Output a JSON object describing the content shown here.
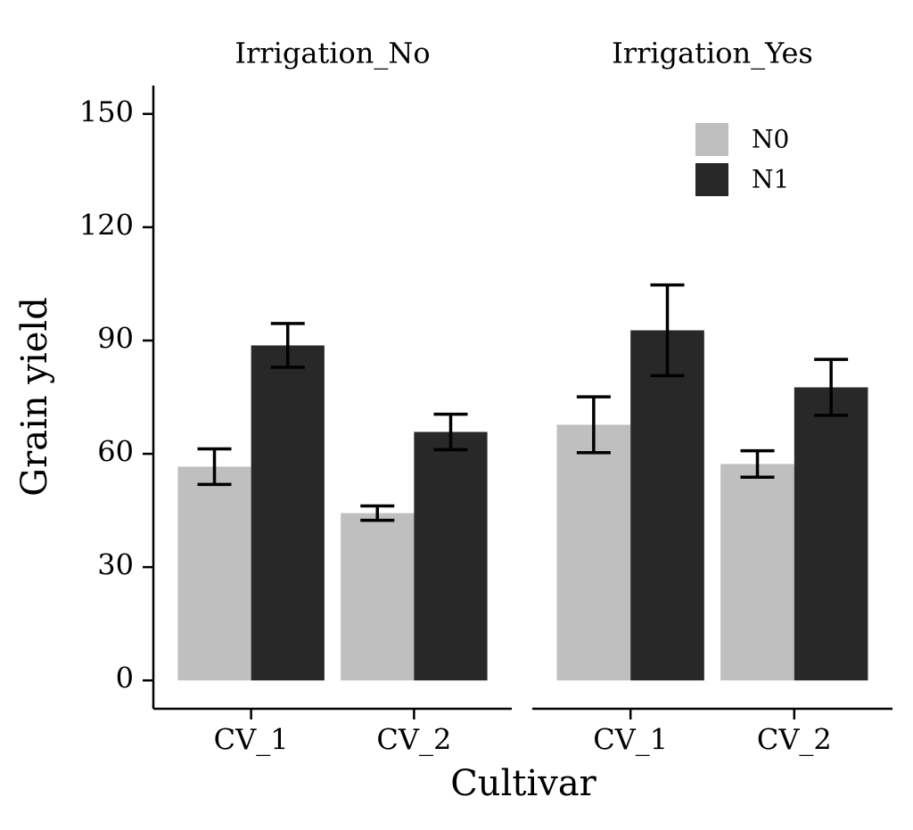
{
  "chart_data": {
    "type": "bar",
    "ylabel": "Grain yield",
    "xlabel": "Cultivar",
    "ylim": [
      -7.5,
      157.5
    ],
    "yticks": [
      0,
      30,
      60,
      90,
      120,
      150
    ],
    "legend": "top-right",
    "grid": false,
    "facets": [
      {
        "title": "Irrigation_No",
        "categories": [
          "CV_1",
          "CV_2"
        ],
        "series": [
          {
            "name": "N0",
            "color": "#bfbfbf",
            "values": [
              56.6,
              44.3
            ],
            "errors": [
              4.7,
              1.9
            ]
          },
          {
            "name": "N1",
            "color": "#282828",
            "values": [
              88.7,
              65.8
            ],
            "errors": [
              5.8,
              4.7
            ]
          }
        ]
      },
      {
        "title": "Irrigation_Yes",
        "categories": [
          "CV_1",
          "CV_2"
        ],
        "series": [
          {
            "name": "N0",
            "color": "#bfbfbf",
            "values": [
              67.7,
              57.3
            ],
            "errors": [
              7.4,
              3.5
            ]
          },
          {
            "name": "N1",
            "color": "#282828",
            "values": [
              92.7,
              77.6
            ],
            "errors": [
              12.0,
              7.4
            ]
          }
        ]
      }
    ]
  }
}
